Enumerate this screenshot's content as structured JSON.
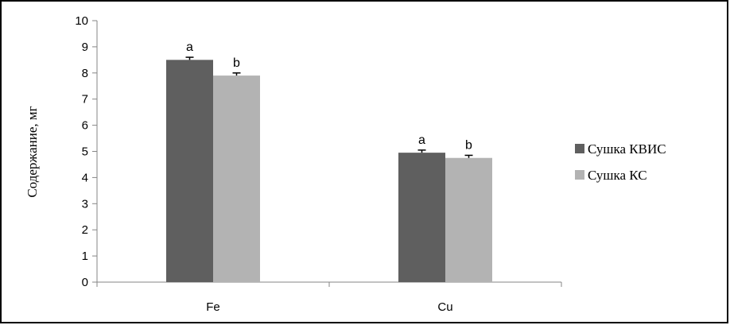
{
  "chart_data": {
    "type": "bar",
    "title": "",
    "xlabel": "",
    "ylabel": "Содержание, мг",
    "ylim": [
      0,
      10
    ],
    "yticks": [
      0,
      1,
      2,
      3,
      4,
      5,
      6,
      7,
      8,
      9,
      10
    ],
    "categories": [
      "Fe",
      "Cu"
    ],
    "series": [
      {
        "name": "Сушка КВИС",
        "color": "#5f5f5f",
        "values": [
          8.5,
          4.95
        ],
        "errors": [
          0.1,
          0.1
        ],
        "labels": [
          "a",
          "a"
        ]
      },
      {
        "name": "Сушка КС",
        "color": "#b3b3b3",
        "values": [
          7.9,
          4.75
        ],
        "errors": [
          0.1,
          0.1
        ],
        "labels": [
          "b",
          "b"
        ]
      }
    ],
    "grid": false,
    "legend_position": "right"
  }
}
